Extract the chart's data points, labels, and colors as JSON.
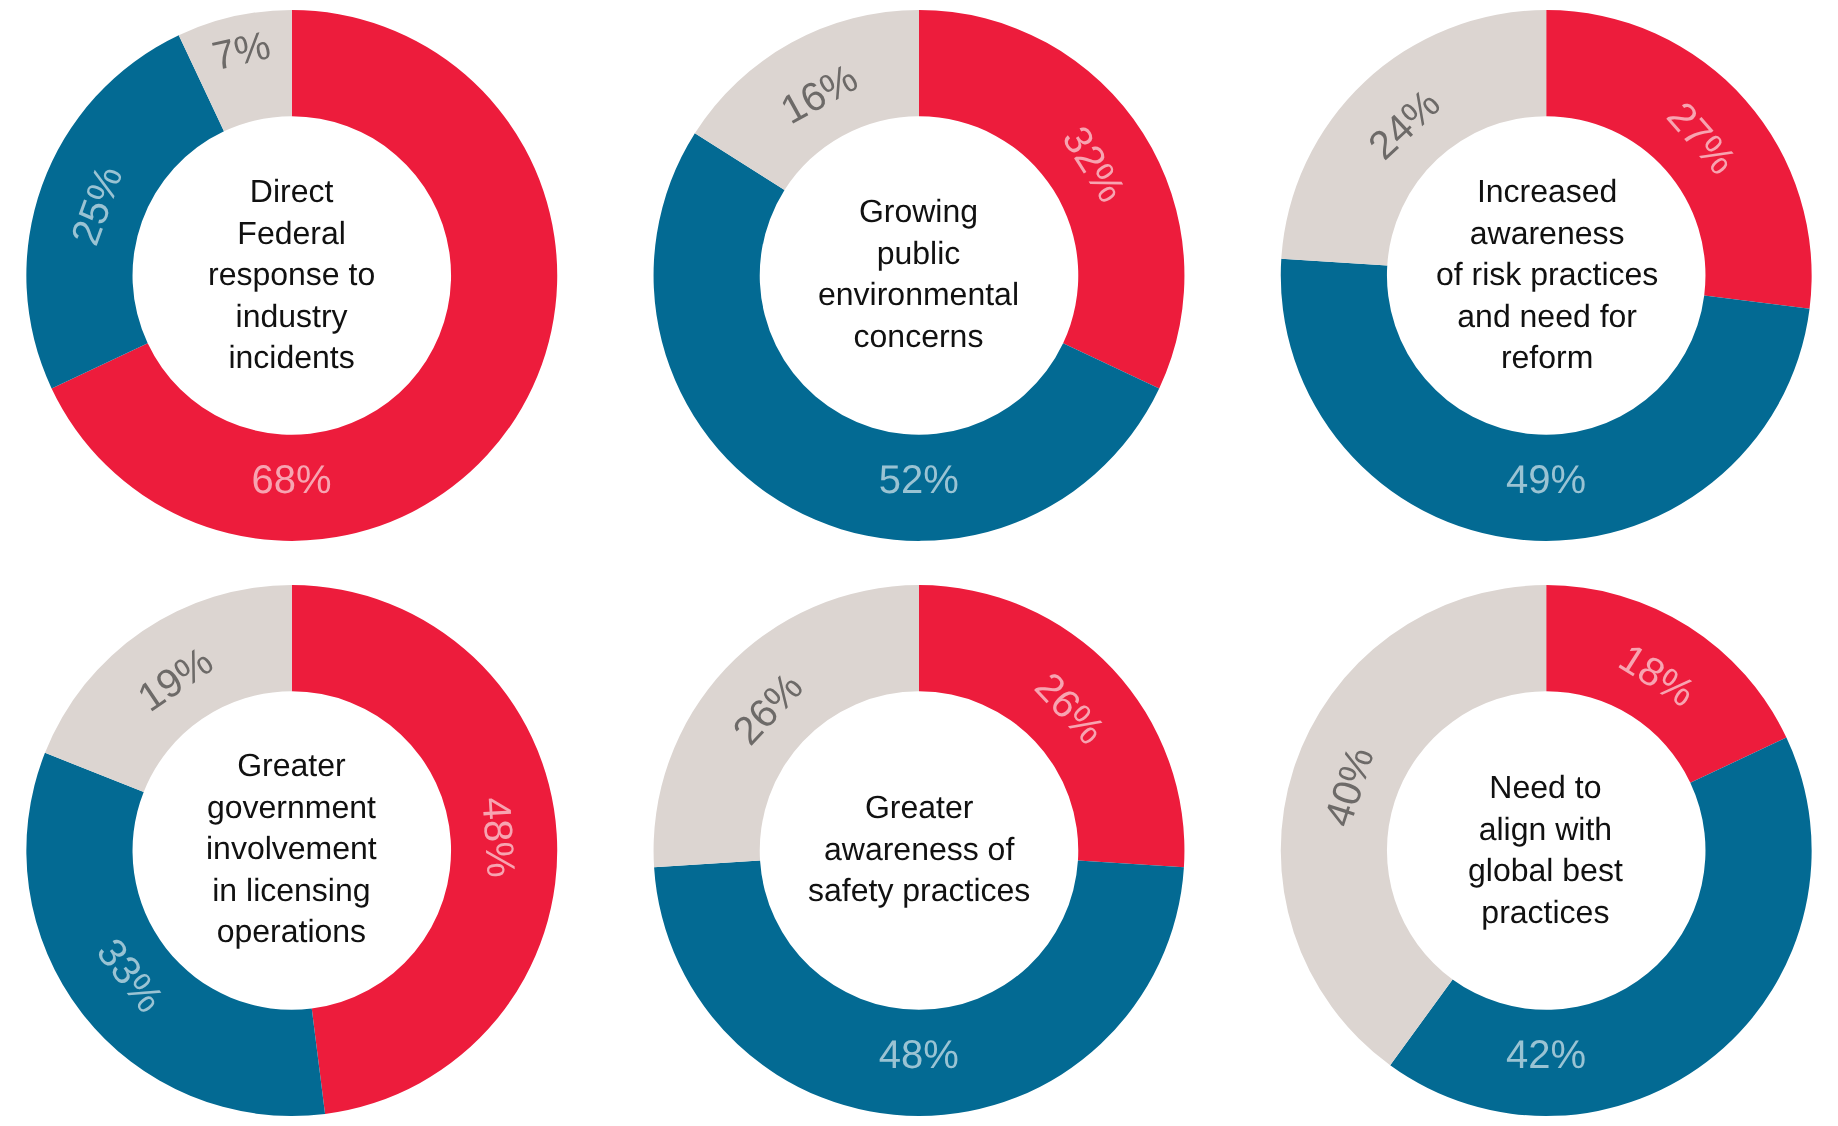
{
  "chart_data": [
    {
      "type": "donut",
      "title": "Direct\nFederal\nresponse to\nindustry\nincidents",
      "categories": [
        null,
        null,
        null
      ],
      "values": [
        68,
        25,
        7
      ],
      "colors": [
        "#ed1c3c",
        "#036a93",
        "#dcd5d1"
      ],
      "value_labels": [
        "68%",
        "25%",
        "7%"
      ]
    },
    {
      "type": "donut",
      "title": "Growing\npublic\nenvironmental\nconcerns",
      "categories": [
        null,
        null,
        null
      ],
      "values": [
        32,
        52,
        16
      ],
      "colors": [
        "#ed1c3c",
        "#036a93",
        "#dcd5d1"
      ],
      "value_labels": [
        "32%",
        "52%",
        "16%"
      ]
    },
    {
      "type": "donut",
      "title": "Increased\nawareness\nof risk practices\nand need for\nreform",
      "categories": [
        null,
        null,
        null
      ],
      "values": [
        27,
        49,
        24
      ],
      "colors": [
        "#ed1c3c",
        "#036a93",
        "#dcd5d1"
      ],
      "value_labels": [
        "27%",
        "49%",
        "24%"
      ]
    },
    {
      "type": "donut",
      "title": "Greater\ngovernment\ninvolvement\nin licensing\noperations",
      "categories": [
        null,
        null,
        null
      ],
      "values": [
        48,
        33,
        19
      ],
      "colors": [
        "#ed1c3c",
        "#036a93",
        "#dcd5d1"
      ],
      "value_labels": [
        "48%",
        "33%",
        "19%"
      ]
    },
    {
      "type": "donut",
      "title": "Greater\nawareness of\nsafety practices",
      "categories": [
        null,
        null,
        null
      ],
      "values": [
        26,
        48,
        26
      ],
      "colors": [
        "#ed1c3c",
        "#036a93",
        "#dcd5d1"
      ],
      "value_labels": [
        "26%",
        "48%",
        "26%"
      ]
    },
    {
      "type": "donut",
      "title": "Need to\nalign with\nglobal best\npractices",
      "categories": [
        null,
        null,
        null
      ],
      "values": [
        18,
        42,
        40
      ],
      "colors": [
        "#ed1c3c",
        "#036a93",
        "#dcd5d1"
      ],
      "value_labels": [
        "18%",
        "42%",
        "40%"
      ]
    }
  ]
}
